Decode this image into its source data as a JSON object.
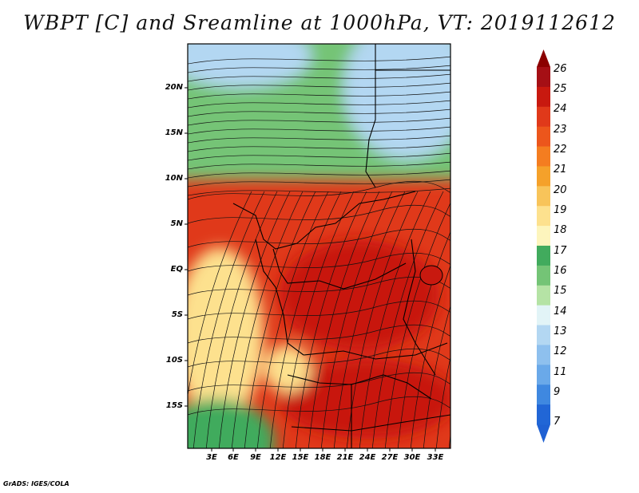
{
  "title": "WBPT [C] and Sreamline at 1000hPa, VT: 2019112612",
  "footer": "GrADS: IGES/COLA",
  "y_axis_labels": [
    "20N",
    "15N",
    "10N",
    "5N",
    "EQ",
    "5S",
    "10S",
    "15S"
  ],
  "x_axis_labels": [
    "3E",
    "6E",
    "9E",
    "12E",
    "15E",
    "18E",
    "21E",
    "24E",
    "27E",
    "30E",
    "33E"
  ],
  "colorbar": {
    "labels": [
      "26",
      "25",
      "24",
      "23",
      "22",
      "21",
      "20",
      "19",
      "18",
      "17",
      "16",
      "15",
      "14",
      "13",
      "12",
      "11",
      "9",
      "7"
    ],
    "colors": [
      "#a50f15",
      "#c8190f",
      "#e0391a",
      "#ec561c",
      "#f47d20",
      "#f5a12a",
      "#f8c45a",
      "#fde18e",
      "#fdf5bd",
      "#41ab5d",
      "#74c476",
      "#b5e3a5",
      "#e2f4f7",
      "#b3d7f2",
      "#8ec0ee",
      "#6aa9e9",
      "#3f88e0",
      "#2166d6"
    ],
    "top_triangle_color": "#8b0000",
    "bottom_triangle_color": "#1f61d3"
  },
  "map_regions": [
    {
      "name": "north-cool",
      "color": "#74c476"
    },
    {
      "name": "north-cold",
      "color": "#b3d7f2"
    },
    {
      "name": "equatorial-warm",
      "color": "#e0391a"
    },
    {
      "name": "central-hot",
      "color": "#c8190f"
    },
    {
      "name": "southwest-mild",
      "color": "#fde18e"
    },
    {
      "name": "southwest-cool",
      "color": "#41ab5d"
    }
  ]
}
